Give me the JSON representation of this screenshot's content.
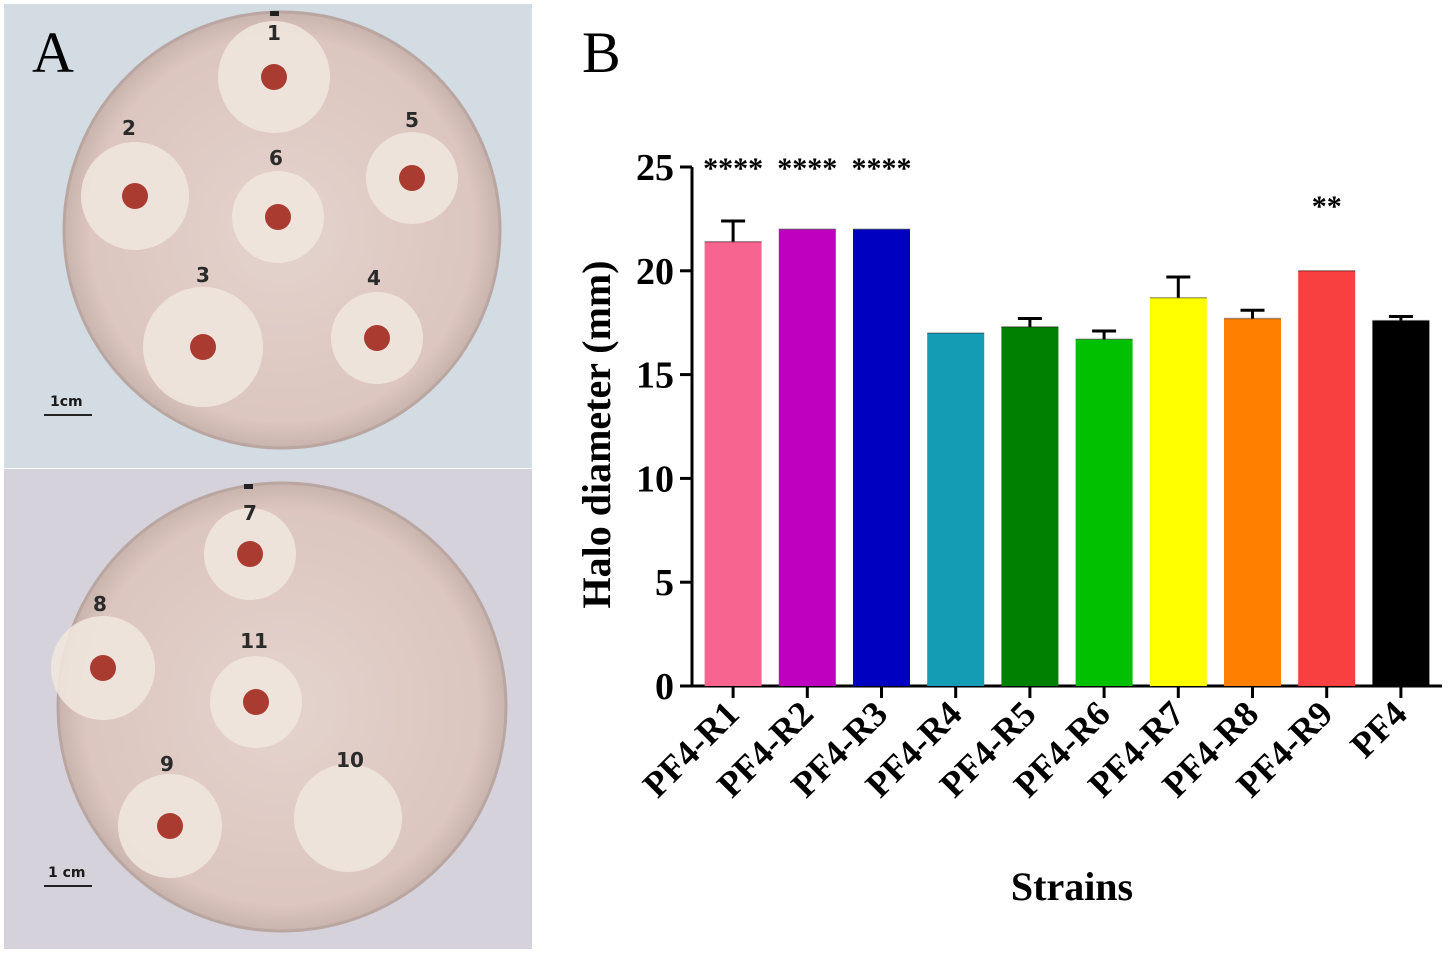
{
  "panel_a": {
    "letter": "A",
    "top_plate": {
      "scale_label": "1cm",
      "colonies": [
        {
          "label": "1",
          "halo": "medium"
        },
        {
          "label": "2",
          "halo": "large"
        },
        {
          "label": "3",
          "halo": "large"
        },
        {
          "label": "4",
          "halo": "medium"
        },
        {
          "label": "5",
          "halo": "medium"
        },
        {
          "label": "6",
          "halo": "medium"
        }
      ]
    },
    "bottom_plate": {
      "scale_label": "1 cm",
      "colonies": [
        {
          "label": "7",
          "halo": "medium"
        },
        {
          "label": "8",
          "halo": "large"
        },
        {
          "label": "9",
          "halo": "medium"
        },
        {
          "label": "10",
          "halo": "large"
        },
        {
          "label": "11",
          "halo": "medium"
        }
      ]
    },
    "colors": {
      "background": "#d7dde4",
      "agar": "#e2cdc7",
      "halo": "#efe6dd",
      "colony": "#a93b30"
    }
  },
  "panel_b": {
    "letter": "B"
  },
  "chart_data": {
    "type": "bar",
    "title": "",
    "xlabel": "Strains",
    "ylabel": "Halo diameter (mm)",
    "ylim": [
      0,
      25
    ],
    "yticks": [
      "0",
      "5",
      "10",
      "15",
      "20",
      "25"
    ],
    "categories": [
      "PF4-R1",
      "PF4-R2",
      "PF4-R3",
      "PF4-R4",
      "PF4-R5",
      "PF4-R6",
      "PF4-R7",
      "PF4-R8",
      "PF4-R9",
      "PF4"
    ],
    "values": [
      21.4,
      22.0,
      22.0,
      17.0,
      17.3,
      16.7,
      18.7,
      17.7,
      20.0,
      17.6
    ],
    "errors": [
      1.0,
      0.0,
      0.0,
      0.0,
      0.4,
      0.4,
      1.0,
      0.4,
      0.0,
      0.2
    ],
    "significance": [
      "****",
      "****",
      "****",
      "",
      "",
      "",
      "",
      "",
      "**",
      ""
    ],
    "colors": [
      "#f7648f",
      "#bf00bf",
      "#0000c0",
      "#149cb4",
      "#008000",
      "#00c000",
      "#ffff00",
      "#ff8000",
      "#f84040",
      "#000000"
    ],
    "grid": false,
    "legend": "none"
  }
}
